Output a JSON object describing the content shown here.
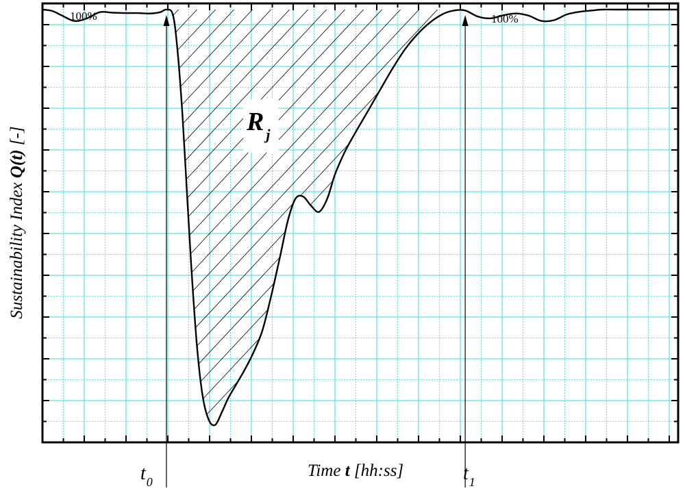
{
  "chart_data": {
    "type": "line",
    "title": "",
    "xlabel_prefix": "Time ",
    "xlabel_var": "t",
    "xlabel_suffix": " [hh:ss]",
    "ylabel_prefix": "Sustainability Index ",
    "ylabel_var": "Q(t)",
    "ylabel_suffix": " [-]",
    "xlim": [
      0,
      100
    ],
    "ylim": [
      0,
      100
    ],
    "grid": true,
    "legend": "none",
    "annotations": {
      "level_left": "100%",
      "level_right": "100%",
      "region_label": "R",
      "region_label_sub": "j",
      "t0_label": "t",
      "t0_sub": "0",
      "t1_label": "t",
      "t1_sub": "1"
    },
    "markers": {
      "t0": 19.5,
      "t1": 66.5
    },
    "series": [
      {
        "x": [
          0,
          1.5,
          3,
          5,
          7,
          9,
          11,
          13,
          15,
          17,
          18.5,
          19.5,
          20.5,
          21.2,
          22,
          22.8,
          23.5,
          24.3,
          25.2,
          26.2,
          27.2,
          28.2,
          29.2,
          30.4,
          31.8,
          33.2,
          34.6,
          36,
          37.4,
          38.6,
          39.8,
          41,
          42.2,
          43.5,
          44.8,
          46,
          47.5,
          49,
          51,
          53,
          55,
          57,
          59,
          61,
          63,
          64.8,
          66.5,
          68.5,
          70.5,
          72.5,
          74.5,
          76.5,
          78.5,
          80.5,
          82.5,
          84.5,
          86.5,
          88,
          90,
          93,
          96,
          100
        ],
        "y": [
          98.6,
          98.3,
          97.3,
          96.0,
          96.6,
          98.0,
          97.9,
          97.8,
          97.8,
          97.7,
          98.0,
          98.6,
          97.5,
          90.0,
          75.0,
          55.0,
          38.0,
          22.0,
          10.5,
          5.0,
          4.0,
          6.8,
          10.0,
          13.0,
          16.5,
          20.5,
          25.5,
          33.5,
          42.5,
          50.5,
          55.5,
          56.0,
          54.0,
          52.5,
          55.5,
          61.0,
          66.0,
          70.0,
          75.0,
          80.0,
          85.0,
          89.5,
          93.0,
          95.7,
          97.6,
          98.4,
          98.4,
          97.0,
          96.6,
          97.3,
          97.7,
          97.2,
          96.0,
          96.2,
          97.5,
          98.1,
          98.4,
          98.6,
          98.6,
          98.6,
          98.6,
          98.6
        ]
      }
    ]
  }
}
